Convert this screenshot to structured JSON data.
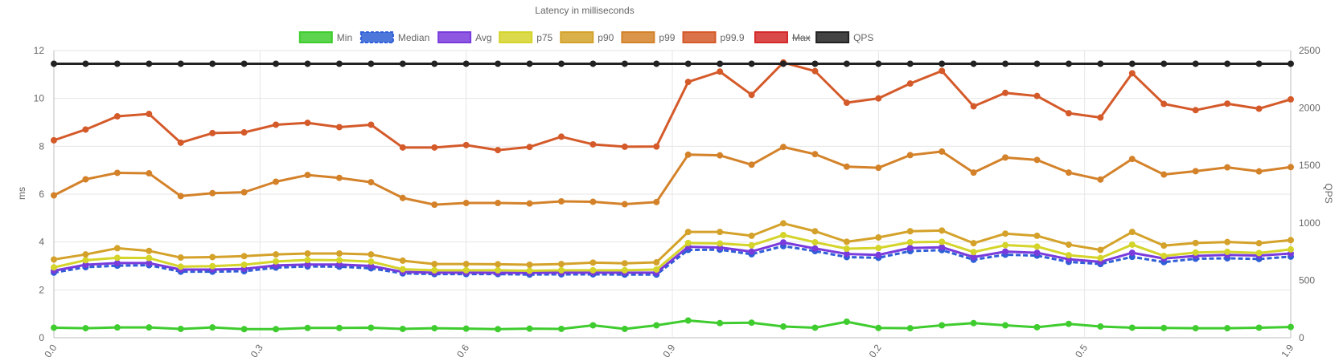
{
  "chart_data": {
    "type": "line",
    "title": "Latency in milliseconds",
    "ylabel": "ms",
    "y2label": "QPS",
    "ylim": [
      0,
      12
    ],
    "y2lim": [
      0,
      2500
    ],
    "yticks": [
      0,
      2,
      4,
      6,
      8,
      10,
      12
    ],
    "y2ticks": [
      0,
      500,
      1000,
      1500,
      2000,
      2500
    ],
    "xtick_labels": [
      "0.0",
      "0.3",
      "0.6",
      "0.9",
      "0.2",
      "0.5",
      "1.9"
    ],
    "grid": true,
    "legend_position": "top",
    "n_points": 40,
    "series": [
      {
        "name": "Min",
        "color": "#3fcc2f",
        "axis": "y",
        "hidden": false,
        "dashed": false,
        "values": [
          0.42,
          0.4,
          0.43,
          0.43,
          0.37,
          0.43,
          0.36,
          0.36,
          0.41,
          0.41,
          0.42,
          0.37,
          0.4,
          0.38,
          0.36,
          0.38,
          0.37,
          0.52,
          0.37,
          0.52,
          0.72,
          0.61,
          0.63,
          0.47,
          0.42,
          0.67,
          0.41,
          0.4,
          0.52,
          0.61,
          0.52,
          0.44,
          0.58,
          0.47,
          0.42,
          0.41,
          0.4,
          0.4,
          0.42,
          0.45
        ]
      },
      {
        "name": "Median",
        "color": "#2f5fd6",
        "axis": "y",
        "hidden": false,
        "dashed": true,
        "values": [
          2.72,
          2.95,
          3.01,
          3.03,
          2.76,
          2.76,
          2.78,
          2.93,
          2.98,
          2.97,
          2.9,
          2.69,
          2.66,
          2.66,
          2.66,
          2.64,
          2.65,
          2.65,
          2.64,
          2.64,
          3.67,
          3.68,
          3.49,
          3.83,
          3.62,
          3.37,
          3.34,
          3.62,
          3.66,
          3.26,
          3.47,
          3.43,
          3.17,
          3.08,
          3.38,
          3.16,
          3.3,
          3.32,
          3.29,
          3.39
        ]
      },
      {
        "name": "Avg",
        "color": "#7a3bdc",
        "axis": "y",
        "hidden": false,
        "dashed": false,
        "values": [
          2.8,
          3.05,
          3.12,
          3.12,
          2.85,
          2.85,
          2.88,
          3.02,
          3.06,
          3.06,
          3.0,
          2.75,
          2.72,
          2.72,
          2.71,
          2.71,
          2.72,
          2.72,
          2.72,
          2.72,
          3.8,
          3.77,
          3.6,
          3.98,
          3.73,
          3.5,
          3.46,
          3.75,
          3.78,
          3.37,
          3.6,
          3.55,
          3.28,
          3.17,
          3.55,
          3.31,
          3.42,
          3.46,
          3.43,
          3.52
        ]
      },
      {
        "name": "p75",
        "color": "#d4d42a",
        "axis": "y",
        "hidden": false,
        "dashed": false,
        "values": [
          2.94,
          3.24,
          3.34,
          3.33,
          2.97,
          2.99,
          3.05,
          3.19,
          3.25,
          3.24,
          3.18,
          2.86,
          2.82,
          2.82,
          2.82,
          2.8,
          2.82,
          2.82,
          2.82,
          2.85,
          3.96,
          3.94,
          3.86,
          4.29,
          3.99,
          3.72,
          3.75,
          3.99,
          4.01,
          3.58,
          3.87,
          3.81,
          3.45,
          3.33,
          3.89,
          3.42,
          3.56,
          3.59,
          3.54,
          3.69
        ]
      },
      {
        "name": "p90",
        "color": "#d4a22a",
        "axis": "y",
        "hidden": false,
        "dashed": false,
        "values": [
          3.27,
          3.48,
          3.74,
          3.63,
          3.35,
          3.37,
          3.41,
          3.48,
          3.52,
          3.52,
          3.48,
          3.22,
          3.08,
          3.08,
          3.07,
          3.05,
          3.08,
          3.14,
          3.11,
          3.15,
          4.42,
          4.42,
          4.26,
          4.78,
          4.45,
          4.01,
          4.19,
          4.45,
          4.48,
          3.95,
          4.35,
          4.26,
          3.89,
          3.67,
          4.42,
          3.85,
          3.96,
          4.0,
          3.95,
          4.08
        ]
      },
      {
        "name": "p99",
        "color": "#d4822a",
        "axis": "y",
        "hidden": false,
        "dashed": false,
        "values": [
          5.95,
          6.62,
          6.89,
          6.87,
          5.92,
          6.04,
          6.08,
          6.52,
          6.8,
          6.68,
          6.5,
          5.84,
          5.56,
          5.63,
          5.63,
          5.61,
          5.7,
          5.68,
          5.58,
          5.67,
          7.65,
          7.62,
          7.23,
          7.97,
          7.67,
          7.15,
          7.1,
          7.63,
          7.78,
          6.9,
          7.53,
          7.43,
          6.9,
          6.61,
          7.47,
          6.82,
          6.96,
          7.12,
          6.95,
          7.13
        ]
      },
      {
        "name": "p99.9",
        "color": "#d45a2a",
        "axis": "y",
        "hidden": false,
        "dashed": false,
        "values": [
          8.25,
          8.7,
          9.25,
          9.35,
          8.15,
          8.55,
          8.58,
          8.9,
          8.98,
          8.8,
          8.9,
          7.95,
          7.95,
          8.05,
          7.84,
          7.97,
          8.4,
          8.08,
          7.98,
          7.99,
          10.69,
          11.12,
          10.15,
          11.5,
          11.14,
          9.82,
          10.0,
          10.62,
          11.15,
          9.67,
          10.23,
          10.1,
          9.38,
          9.2,
          11.05,
          9.77,
          9.51,
          9.78,
          9.57,
          9.96
        ]
      },
      {
        "name": "Max",
        "color": "#d42a2a",
        "axis": "y",
        "hidden": true,
        "dashed": false,
        "values": []
      },
      {
        "name": "QPS",
        "color": "#222222",
        "axis": "y2",
        "hidden": false,
        "dashed": false,
        "values": [
          2385,
          2385,
          2385,
          2385,
          2385,
          2385,
          2385,
          2385,
          2385,
          2385,
          2385,
          2385,
          2385,
          2385,
          2385,
          2385,
          2385,
          2385,
          2385,
          2385,
          2385,
          2385,
          2385,
          2385,
          2385,
          2385,
          2385,
          2385,
          2385,
          2385,
          2385,
          2385,
          2385,
          2385,
          2385,
          2385,
          2385,
          2385,
          2385,
          2385
        ]
      }
    ]
  }
}
